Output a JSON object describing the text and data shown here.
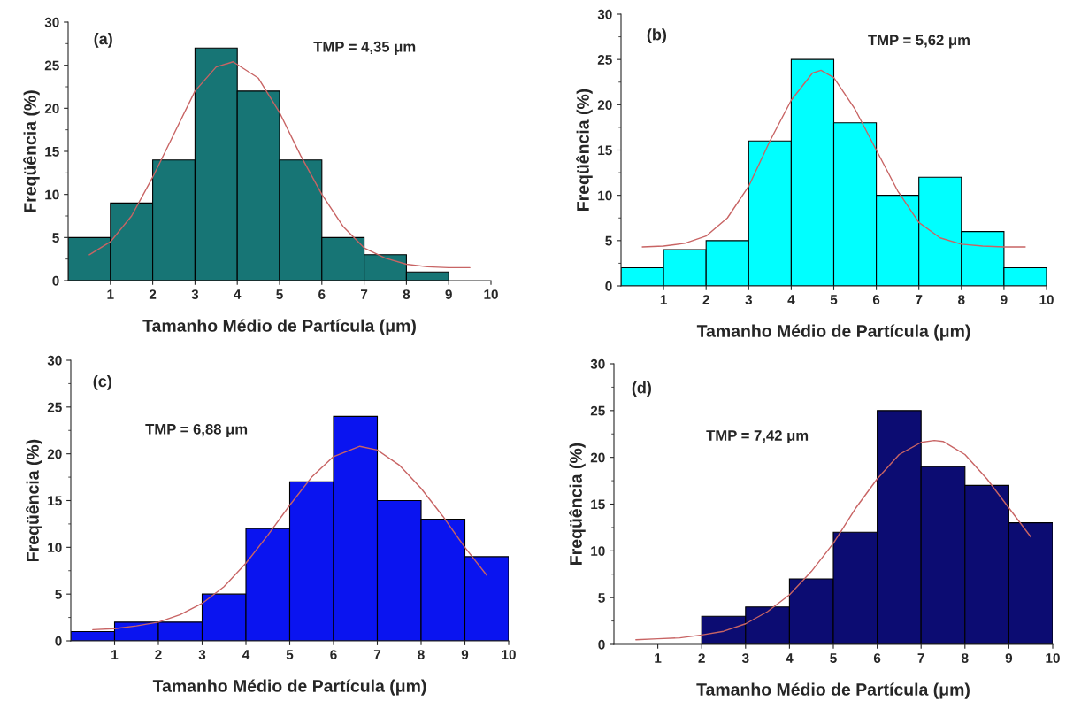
{
  "chart_data": [
    {
      "type": "histogram",
      "xlabel": "Tamanho Médio de Partícula (μm)",
      "ylabel": "Freqüência (%)",
      "annotations": [
        "(a)",
        "TMP = 4,35 μm"
      ],
      "bins": [
        0,
        1,
        2,
        3,
        4,
        5,
        6,
        7,
        8,
        9
      ],
      "values": [
        5,
        9,
        14,
        27,
        22,
        14,
        5,
        3,
        1
      ],
      "color": "#177575",
      "xlim": [
        0,
        10
      ],
      "ylim": [
        0,
        30
      ],
      "xticks": [
        1,
        2,
        3,
        4,
        5,
        6,
        7,
        8,
        9,
        10
      ],
      "yticks": [
        0,
        5,
        10,
        15,
        20,
        25,
        30
      ],
      "grid": false,
      "series": [
        {
          "type": "line",
          "color": "#c86464",
          "x": [
            0.5,
            1,
            1.5,
            2,
            2.5,
            3,
            3.5,
            3.9,
            4.5,
            5,
            5.5,
            6,
            6.5,
            7,
            7.5,
            8,
            8.5,
            9,
            9.5
          ],
          "values": [
            3,
            4.5,
            7.5,
            12,
            17,
            22,
            24.8,
            25.4,
            23.5,
            19.5,
            14.5,
            10,
            6.3,
            3.8,
            2.6,
            1.9,
            1.6,
            1.5,
            1.5
          ]
        }
      ]
    },
    {
      "type": "histogram",
      "xlabel": "Tamanho Médio de Partícula (μm)",
      "ylabel": "Freqüência (%)",
      "annotations": [
        "(b)",
        "TMP = 5,62 μm"
      ],
      "bins": [
        0,
        1,
        2,
        3,
        4,
        5,
        6,
        7,
        8,
        9,
        10
      ],
      "values": [
        2,
        4,
        5,
        16,
        25,
        18,
        10,
        12,
        6,
        2
      ],
      "color": "#00ffff",
      "xlim": [
        0,
        10
      ],
      "ylim": [
        0,
        30
      ],
      "xticks": [
        1,
        2,
        3,
        4,
        5,
        6,
        7,
        8,
        9,
        10
      ],
      "yticks": [
        0,
        5,
        10,
        15,
        20,
        25,
        30
      ],
      "grid": false,
      "series": [
        {
          "type": "line",
          "color": "#c86464",
          "x": [
            0.5,
            1,
            1.5,
            2,
            2.5,
            3,
            3.5,
            4,
            4.5,
            4.7,
            5,
            5.5,
            6,
            6.5,
            7,
            7.5,
            8,
            8.5,
            9,
            9.5
          ],
          "values": [
            4.3,
            4.4,
            4.7,
            5.5,
            7.5,
            11,
            16,
            20.5,
            23.5,
            23.8,
            23,
            19.5,
            15,
            10.5,
            7,
            5.3,
            4.6,
            4.4,
            4.3,
            4.3
          ]
        }
      ]
    },
    {
      "type": "histogram",
      "xlabel": "Tamanho Médio de Partícula (μm)",
      "ylabel": "Freqüência (%)",
      "annotations": [
        "(c)",
        "TMP = 6,88 μm"
      ],
      "bins": [
        0,
        1,
        2,
        3,
        4,
        5,
        6,
        7,
        8,
        9,
        10
      ],
      "values": [
        1,
        2,
        2,
        5,
        12,
        17,
        24,
        15,
        13,
        9
      ],
      "color": "#0a14f0",
      "xlim": [
        0,
        10
      ],
      "ylim": [
        0,
        30
      ],
      "xticks": [
        1,
        2,
        3,
        4,
        5,
        6,
        7,
        8,
        9,
        10
      ],
      "yticks": [
        0,
        5,
        10,
        15,
        20,
        25,
        30
      ],
      "grid": false,
      "series": [
        {
          "type": "line",
          "color": "#c86464",
          "x": [
            0.5,
            1,
            1.5,
            2,
            2.5,
            3,
            3.5,
            4,
            4.5,
            5,
            5.5,
            6,
            6.6,
            7,
            7.5,
            8,
            8.5,
            9,
            9.5
          ],
          "values": [
            1.2,
            1.3,
            1.6,
            2,
            2.8,
            4,
            5.8,
            8.3,
            11.3,
            14.5,
            17.5,
            19.7,
            20.8,
            20.4,
            18.8,
            16.3,
            13.3,
            10,
            7
          ]
        }
      ]
    },
    {
      "type": "histogram",
      "xlabel": "Tamanho Médio de Partícula (μm)",
      "ylabel": "Freqüência (%)",
      "annotations": [
        "(d)",
        "TMP = 7,42 μm"
      ],
      "bins": [
        2,
        3,
        4,
        5,
        6,
        7,
        8,
        9,
        10
      ],
      "values": [
        3,
        4,
        7,
        12,
        25,
        19,
        17,
        13
      ],
      "color": "#0c0c72",
      "xlim": [
        0,
        10
      ],
      "ylim": [
        0,
        30
      ],
      "xticks": [
        1,
        2,
        3,
        4,
        5,
        6,
        7,
        8,
        9,
        10
      ],
      "yticks": [
        0,
        5,
        10,
        15,
        20,
        25,
        30
      ],
      "grid": false,
      "series": [
        {
          "type": "line",
          "color": "#c86464",
          "x": [
            0.5,
            1,
            1.5,
            2,
            2.5,
            3,
            3.5,
            4,
            4.5,
            5,
            5.5,
            6,
            6.5,
            7,
            7.3,
            7.5,
            8,
            8.5,
            9,
            9.5
          ],
          "values": [
            0.5,
            0.6,
            0.7,
            1,
            1.4,
            2.2,
            3.5,
            5.3,
            7.8,
            10.8,
            14.5,
            17.7,
            20.3,
            21.6,
            21.8,
            21.7,
            20.3,
            17.7,
            14.6,
            11.5
          ]
        }
      ]
    }
  ]
}
